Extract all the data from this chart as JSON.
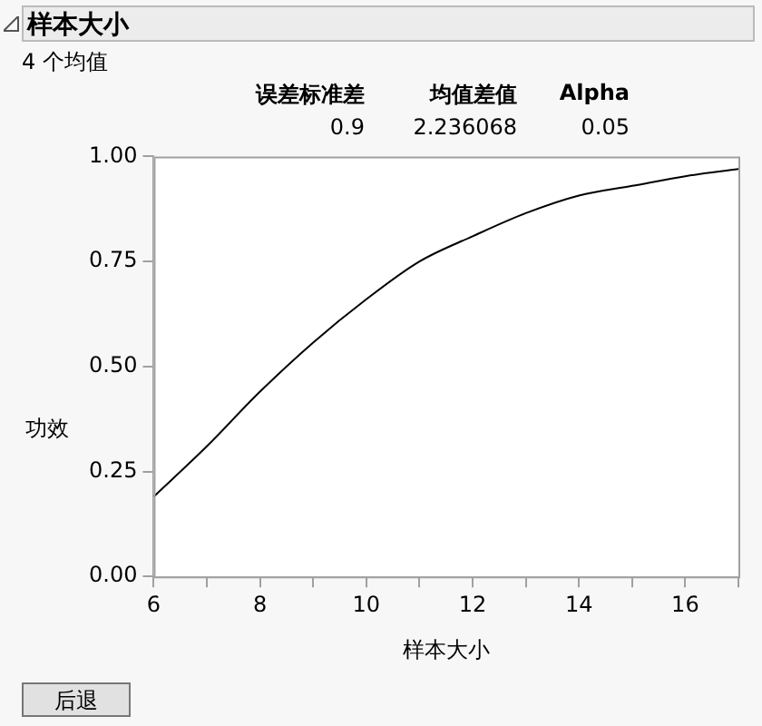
{
  "chart_data": {
    "type": "line",
    "title": "样本大小",
    "subtitle": "4 个均值",
    "xlabel": "样本大小",
    "ylabel": "功效",
    "annotations": [
      "误差标准差",
      "均值差值",
      "Alpha",
      "0.9",
      "2.236068",
      "0.05",
      "后退"
    ],
    "x": [
      6,
      7,
      8,
      9,
      10,
      11,
      12,
      13,
      14,
      15,
      16,
      17
    ],
    "series": [
      {
        "color": "#000000",
        "values": [
          0.19,
          0.31,
          0.44,
          0.557,
          0.66,
          0.75,
          0.81,
          0.865,
          0.907,
          0.93,
          0.953,
          0.97
        ]
      }
    ],
    "xlim": [
      6,
      17
    ],
    "xticks": [
      6,
      {
        "value": 7,
        "label": null
      },
      8,
      {
        "value": 9,
        "label": null
      },
      10,
      {
        "value": 11,
        "label": null
      },
      12,
      {
        "value": 13,
        "label": null
      },
      14,
      {
        "value": 15,
        "label": null
      },
      16,
      {
        "value": 17,
        "label": null
      }
    ],
    "ylim": [
      0,
      1
    ],
    "yticks": [
      {
        "value": 0,
        "label": "0.00"
      },
      {
        "value": 0.25,
        "label": "0.25"
      },
      {
        "value": 0.5,
        "label": "0.50"
      },
      {
        "value": 0.75,
        "label": "0.75"
      },
      {
        "value": 1,
        "label": "1.00"
      }
    ],
    "grid": false,
    "legend": false,
    "marker": "none",
    "line_style": "solid"
  }
}
